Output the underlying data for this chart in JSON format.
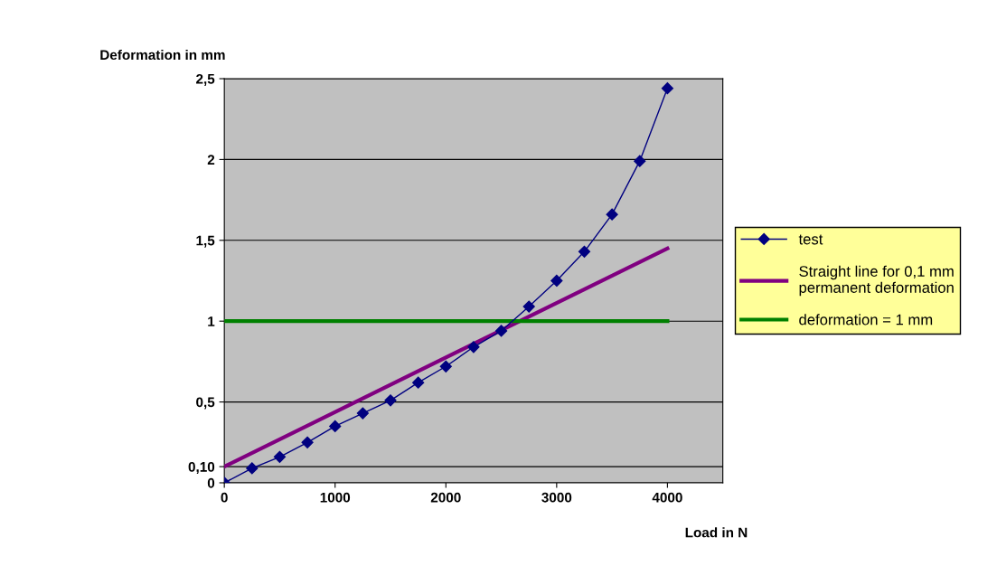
{
  "chart_data": {
    "type": "line",
    "xlabel": "Load in N",
    "ylabel": "Deformation in mm",
    "xlim": [
      0,
      4500
    ],
    "xticks": [
      0,
      1000,
      2000,
      3000,
      4000
    ],
    "ylim": [
      0,
      2.5
    ],
    "yticks": [
      0,
      {
        "value": 0.1,
        "label": "0,10"
      },
      {
        "value": 0.5,
        "label": "0,5"
      },
      1,
      {
        "value": 1.5,
        "label": "1,5"
      },
      2,
      {
        "value": 2.5,
        "label": "2,5"
      }
    ],
    "grid": "y",
    "legend": "right",
    "series": [
      {
        "name": "test",
        "color": "#000080",
        "marker": "diamond",
        "x": [
          0,
          250,
          500,
          750,
          1000,
          1250,
          1500,
          1750,
          2000,
          2250,
          2500,
          2750,
          3000,
          3250,
          3500,
          3750,
          4000
        ],
        "values": [
          0,
          0.09,
          0.16,
          0.25,
          0.35,
          0.43,
          0.51,
          0.62,
          0.72,
          0.84,
          0.94,
          1.09,
          1.25,
          1.43,
          1.66,
          1.99,
          2.44
        ]
      },
      {
        "name": "Straight line for 0,1 mm\npermanent deformation",
        "color": "#800080",
        "x": [
          0,
          4000
        ],
        "values": [
          0.1,
          1.45
        ]
      },
      {
        "name": "deformation = 1 mm",
        "color": "#008000",
        "x": [
          0,
          4000
        ],
        "values": [
          1,
          1
        ]
      }
    ]
  }
}
